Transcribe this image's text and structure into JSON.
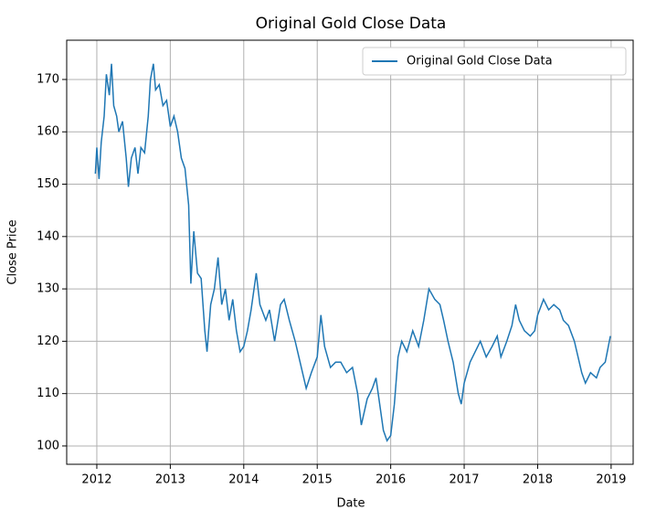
{
  "chart_data": {
    "type": "line",
    "title": "Original Gold Close Data",
    "x_label": "Date",
    "y_label": "Close Price",
    "x": [
      2011.98,
      2012.0,
      2012.03,
      2012.06,
      2012.1,
      2012.13,
      2012.17,
      2012.2,
      2012.23,
      2012.27,
      2012.3,
      2012.35,
      2012.4,
      2012.43,
      2012.47,
      2012.52,
      2012.56,
      2012.6,
      2012.65,
      2012.7,
      2012.73,
      2012.77,
      2012.8,
      2012.85,
      2012.9,
      2012.95,
      2013.0,
      2013.05,
      2013.1,
      2013.15,
      2013.2,
      2013.25,
      2013.28,
      2013.32,
      2013.37,
      2013.42,
      2013.47,
      2013.5,
      2013.55,
      2013.6,
      2013.65,
      2013.7,
      2013.75,
      2013.8,
      2013.85,
      2013.9,
      2013.95,
      2014.0,
      2014.05,
      2014.1,
      2014.17,
      2014.22,
      2014.3,
      2014.35,
      2014.42,
      2014.5,
      2014.55,
      2014.62,
      2014.7,
      2014.75,
      2014.85,
      2014.92,
      2015.0,
      2015.05,
      2015.1,
      2015.18,
      2015.25,
      2015.32,
      2015.4,
      2015.48,
      2015.55,
      2015.6,
      2015.68,
      2015.75,
      2015.8,
      2015.85,
      2015.9,
      2015.95,
      2016.0,
      2016.05,
      2016.1,
      2016.15,
      2016.22,
      2016.3,
      2016.38,
      2016.45,
      2016.52,
      2016.6,
      2016.67,
      2016.72,
      2016.78,
      2016.85,
      2016.92,
      2016.96,
      2017.0,
      2017.08,
      2017.15,
      2017.22,
      2017.3,
      2017.38,
      2017.45,
      2017.5,
      2017.58,
      2017.65,
      2017.7,
      2017.75,
      2017.82,
      2017.9,
      2017.96,
      2018.0,
      2018.08,
      2018.15,
      2018.22,
      2018.3,
      2018.35,
      2018.42,
      2018.5,
      2018.55,
      2018.6,
      2018.65,
      2018.72,
      2018.8,
      2018.85,
      2018.92,
      2018.99
    ],
    "series": [
      {
        "name": "Original Gold Close Data",
        "color": "#1f77b4",
        "values": [
          152,
          157,
          151,
          158,
          163,
          171,
          167,
          173,
          165,
          163,
          160,
          162,
          155,
          149.5,
          155,
          157,
          152,
          157,
          156,
          163,
          170,
          173,
          168,
          169,
          165,
          166,
          161,
          163,
          160,
          155,
          153,
          146,
          131,
          141,
          133,
          132,
          122,
          118,
          127,
          130,
          136,
          127,
          130,
          124,
          128,
          122,
          118,
          119,
          122,
          126,
          133,
          127,
          124,
          126,
          120,
          127,
          128,
          124,
          120,
          117,
          111,
          114,
          117,
          125,
          119,
          115,
          116,
          116,
          114,
          115,
          110,
          104,
          109,
          111,
          113,
          108,
          103,
          101,
          102,
          108,
          117,
          120,
          118,
          122,
          119,
          124,
          130,
          128,
          127,
          124,
          120,
          116,
          110,
          108,
          112,
          116,
          118,
          120,
          117,
          119,
          121,
          117,
          120,
          123,
          127,
          124,
          122,
          121,
          122,
          125,
          128,
          126,
          127,
          126,
          124,
          123,
          120,
          117,
          114,
          112,
          114,
          113,
          115,
          116,
          121
        ]
      }
    ],
    "xlim": [
      2011.59,
      2019.3
    ],
    "xticks": [
      2012,
      2013,
      2014,
      2015,
      2016,
      2017,
      2018,
      2019
    ],
    "ylim": [
      96.5,
      177.5
    ],
    "yticks": [
      100,
      110,
      120,
      130,
      140,
      150,
      160,
      170
    ],
    "grid": true,
    "legend": "upper right"
  }
}
